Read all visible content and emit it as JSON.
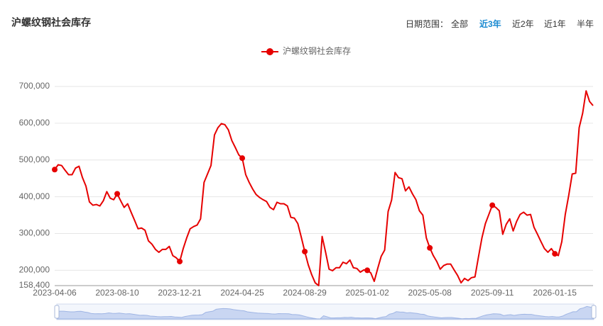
{
  "controls": {
    "label": "日期范围：",
    "options": [
      "全部",
      "近3年",
      "近2年",
      "近1年",
      "半年"
    ],
    "active": 1
  },
  "chart_data": {
    "type": "line",
    "title": "沪螺纹钢社会库存",
    "categories": [
      "2023-04-06",
      null,
      null,
      null,
      null,
      null,
      null,
      null,
      null,
      null,
      null,
      null,
      null,
      null,
      null,
      null,
      null,
      null,
      "2023-08-10",
      null,
      null,
      null,
      null,
      null,
      null,
      null,
      null,
      null,
      null,
      null,
      null,
      null,
      null,
      null,
      null,
      null,
      "2023-12-21",
      null,
      null,
      null,
      null,
      null,
      null,
      null,
      null,
      null,
      null,
      null,
      null,
      null,
      null,
      null,
      null,
      null,
      "2024-04-25",
      null,
      null,
      null,
      null,
      null,
      null,
      null,
      null,
      null,
      null,
      null,
      null,
      null,
      null,
      null,
      null,
      null,
      "2024-08-29",
      null,
      null,
      null,
      null,
      null,
      null,
      null,
      null,
      null,
      null,
      null,
      null,
      null,
      null,
      null,
      null,
      null,
      "2025-01-02",
      null,
      null,
      null,
      null,
      null,
      null,
      null,
      null,
      null,
      null,
      null,
      null,
      null,
      null,
      null,
      null,
      null,
      "2025-05-08",
      null,
      null,
      null,
      null,
      null,
      null,
      null,
      null,
      null,
      null,
      null,
      null,
      null,
      null,
      null,
      null,
      null,
      "2025-09-11",
      null,
      null,
      null,
      null,
      null,
      null,
      null,
      null,
      null,
      null,
      null,
      null,
      null,
      null,
      null,
      null,
      null,
      "2026-01-15",
      null,
      null,
      null,
      null,
      null,
      null,
      null,
      null,
      null,
      null,
      null
    ],
    "series": [
      {
        "name": "沪螺纹钢社会库存",
        "color": "#e60000",
        "values": [
          474000,
          487000,
          485000,
          472000,
          460000,
          460000,
          478000,
          483000,
          452000,
          429000,
          386000,
          377000,
          379000,
          375000,
          389000,
          414000,
          396000,
          392000,
          408000,
          389000,
          371000,
          381000,
          358000,
          336000,
          313000,
          315000,
          309000,
          280000,
          271000,
          257000,
          249000,
          257000,
          257000,
          265000,
          240000,
          234000,
          224000,
          259000,
          288000,
          313000,
          319000,
          323000,
          340000,
          439000,
          462000,
          485000,
          568000,
          588000,
          599000,
          596000,
          582000,
          553000,
          534000,
          514000,
          505000,
          460000,
          439000,
          421000,
          406000,
          398000,
          392000,
          387000,
          371000,
          365000,
          385000,
          381000,
          381000,
          375000,
          344000,
          342000,
          327000,
          290000,
          251000,
          215000,
          188000,
          166000,
          158400,
          292000,
          249000,
          203000,
          199000,
          207000,
          207000,
          222000,
          218000,
          228000,
          207000,
          205000,
          195000,
          201000,
          200000,
          193000,
          170000,
          205000,
          238000,
          255000,
          360000,
          391000,
          466000,
          452000,
          449000,
          416000,
          427000,
          408000,
          392000,
          362000,
          350000,
          288000,
          261000,
          240000,
          224000,
          203000,
          213000,
          217000,
          217000,
          201000,
          186000,
          166000,
          178000,
          172000,
          180000,
          182000,
          236000,
          288000,
          327000,
          352000,
          377000,
          371000,
          362000,
          298000,
          325000,
          340000,
          307000,
          333000,
          352000,
          358000,
          350000,
          352000,
          317000,
          298000,
          278000,
          259000,
          249000,
          259000,
          245000,
          240000,
          278000,
          352000,
          404000,
          462000,
          464000,
          588000,
          627000,
          688000,
          659000,
          648000
        ]
      }
    ],
    "ylim": [
      158400,
      700000
    ],
    "yticks": [
      {
        "value": 158400,
        "label": "158,400"
      },
      {
        "value": 200000,
        "label": "200,000"
      },
      {
        "value": 300000,
        "label": "300,000"
      },
      {
        "value": 400000,
        "label": "400,000"
      },
      {
        "value": 500000,
        "label": "500,000"
      },
      {
        "value": 600000,
        "label": "600,000"
      },
      {
        "value": 700000,
        "label": "700,000"
      }
    ],
    "grid": true,
    "legend": "top"
  }
}
